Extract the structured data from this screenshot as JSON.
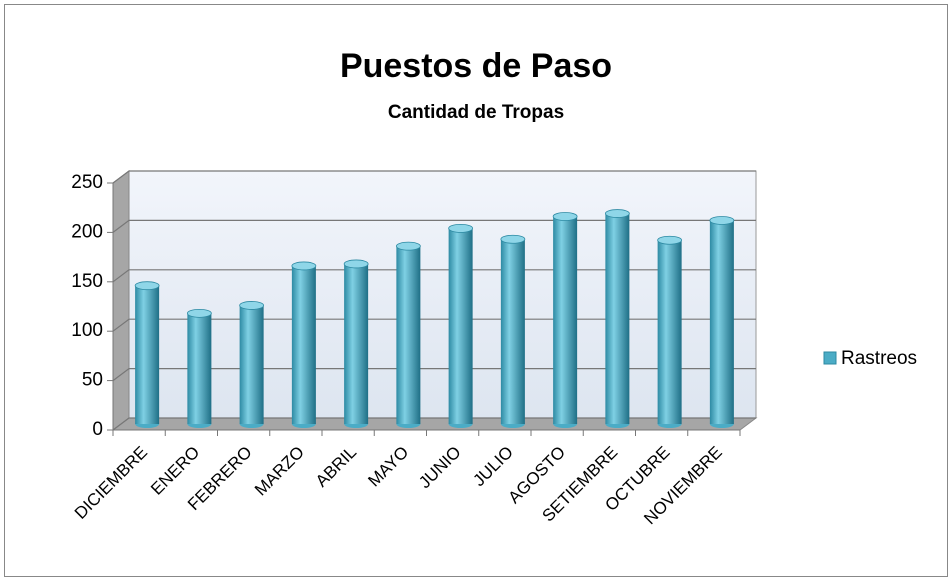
{
  "chart_data": {
    "type": "bar",
    "title": "Puestos de Paso",
    "subtitle": "Cantidad de Tropas",
    "categories": [
      "DICIEMBRE",
      "ENERO",
      "FEBRERO",
      "MARZO",
      "ABRIL",
      "MAYO",
      "JUNIO",
      "JULIO",
      "AGOSTO",
      "SETIEMBRE",
      "OCTUBRE",
      "NOVIEMBRE"
    ],
    "series": [
      {
        "name": "Rastreos",
        "color": "#4bacc6",
        "values": [
          140,
          112,
          120,
          160,
          162,
          180,
          198,
          187,
          210,
          213,
          186,
          206
        ]
      }
    ],
    "ylim": [
      0,
      250
    ],
    "yticks": [
      0,
      50,
      100,
      150,
      200,
      250
    ],
    "grid": true,
    "legend": "right"
  }
}
